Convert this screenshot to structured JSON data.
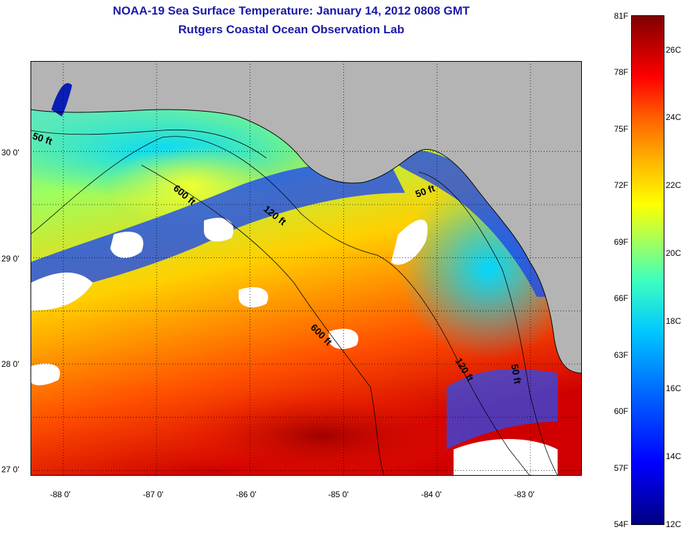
{
  "header": {
    "title": "NOAA-19 Sea Surface Temperature:  January 14, 2012 0808 GMT",
    "subtitle": "Rutgers Coastal Ocean Observation Lab"
  },
  "map": {
    "lat_labels": [
      "30 0'",
      "29 0'",
      "28 0'",
      "27 0'"
    ],
    "lon_labels": [
      "-88 0'",
      "-87 0'",
      "-86 0'",
      "-85 0'",
      "-84 0'",
      "-83 0'"
    ],
    "lat_range": [
      26.95,
      30.85
    ],
    "lon_range": [
      -88.35,
      -82.45
    ],
    "contour_labels": [
      "50 ft",
      "600 ft",
      "120 ft",
      "50 ft",
      "600 ft",
      "120 ft",
      "50 ft"
    ],
    "colors": {
      "land": "#b4b4b4",
      "cloud": "#ffffff",
      "coast": "#000000"
    }
  },
  "colorbar": {
    "fahrenheit": [
      "81F",
      "78F",
      "75F",
      "72F",
      "69F",
      "66F",
      "63F",
      "60F",
      "57F",
      "54F"
    ],
    "celsius": [
      "26C",
      "24C",
      "22C",
      "20C",
      "18C",
      "16C",
      "14C",
      "12C"
    ]
  }
}
